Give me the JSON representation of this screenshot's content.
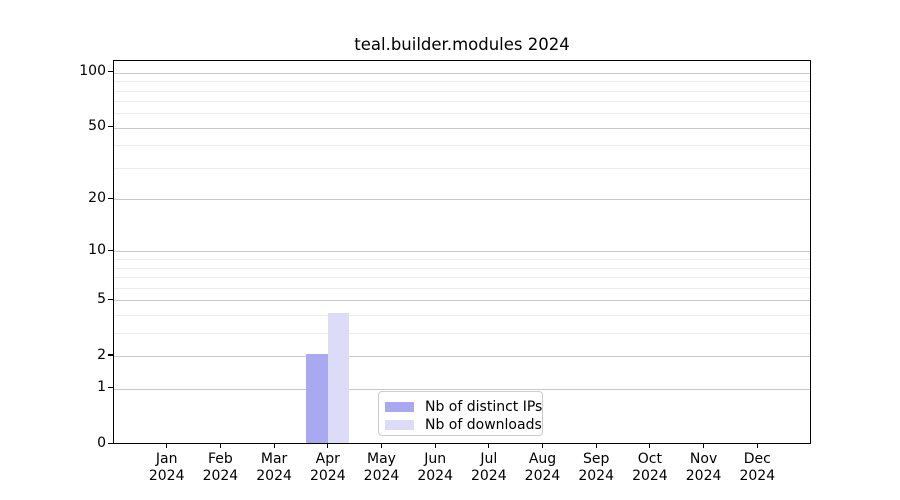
{
  "chart_data": {
    "type": "bar",
    "title": "teal.builder.modules 2024",
    "categories": [
      "Jan",
      "Feb",
      "Mar",
      "Apr",
      "May",
      "Jun",
      "Jul",
      "Aug",
      "Sep",
      "Oct",
      "Nov",
      "Dec"
    ],
    "year_label": "2024",
    "series": [
      {
        "name": "Nb of distinct IPs",
        "color": "#a9a9f1",
        "values": [
          0,
          0,
          0,
          2,
          0,
          0,
          0,
          0,
          0,
          0,
          0,
          0
        ]
      },
      {
        "name": "Nb of downloads",
        "color": "#dcdcf9",
        "values": [
          0,
          0,
          0,
          4,
          0,
          0,
          0,
          0,
          0,
          0,
          0,
          0
        ]
      }
    ],
    "y_axis": {
      "scale": "log1p",
      "major_ticks": [
        0,
        1,
        2,
        5,
        10,
        20,
        50,
        100
      ],
      "minor_ticks": [
        3,
        4,
        6,
        7,
        8,
        9,
        30,
        40,
        60,
        70,
        80,
        90
      ],
      "ylim": [
        0,
        116
      ]
    },
    "grid": "horizontal",
    "legend_position": "bottom-center",
    "colors": {
      "bar_distinct_ips": "#a9a9f1",
      "bar_downloads": "#dcdcf9",
      "major_grid": "#c9c9c9",
      "minor_grid": "#ebebeb",
      "spine": "#000000",
      "background": "#ffffff"
    }
  }
}
